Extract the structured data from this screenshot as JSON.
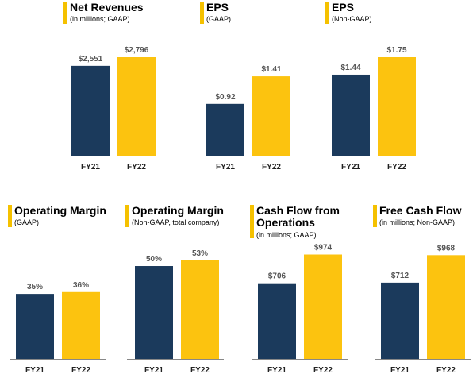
{
  "colors": {
    "fy21": "#1b3a5c",
    "fy22": "#fcc30f",
    "accent": "#f5c100",
    "axis": "#888888"
  },
  "chart_data": [
    {
      "type": "bar",
      "title": "Net Revenues",
      "subtitle": "(in millions; GAAP)",
      "categories": [
        "FY21",
        "FY22"
      ],
      "values": [
        2551,
        2796
      ],
      "labels": [
        "$2,551",
        "$2,796"
      ]
    },
    {
      "type": "bar",
      "title": "EPS",
      "subtitle": "(GAAP)",
      "categories": [
        "FY21",
        "FY22"
      ],
      "values": [
        0.92,
        1.41
      ],
      "labels": [
        "$0.92",
        "$1.41"
      ]
    },
    {
      "type": "bar",
      "title": "EPS",
      "subtitle": "(Non-GAAP)",
      "categories": [
        "FY21",
        "FY22"
      ],
      "values": [
        1.44,
        1.75
      ],
      "labels": [
        "$1.44",
        "$1.75"
      ]
    },
    {
      "type": "bar",
      "title": "Operating Margin",
      "subtitle": "(GAAP)",
      "categories": [
        "FY21",
        "FY22"
      ],
      "values": [
        35,
        36
      ],
      "labels": [
        "35%",
        "36%"
      ]
    },
    {
      "type": "bar",
      "title": "Operating Margin",
      "subtitle": "(Non-GAAP, total company)",
      "categories": [
        "FY21",
        "FY22"
      ],
      "values": [
        50,
        53
      ],
      "labels": [
        "50%",
        "53%"
      ]
    },
    {
      "type": "bar",
      "title": "Cash Flow from Operations",
      "subtitle": "(in millions; GAAP)",
      "categories": [
        "FY21",
        "FY22"
      ],
      "values": [
        706,
        974
      ],
      "labels": [
        "$706",
        "$974"
      ]
    },
    {
      "type": "bar",
      "title": "Free Cash Flow",
      "subtitle": "(in millions; Non-GAAP)",
      "categories": [
        "FY21",
        "FY22"
      ],
      "values": [
        712,
        968
      ],
      "labels": [
        "$712",
        "$968"
      ]
    }
  ]
}
